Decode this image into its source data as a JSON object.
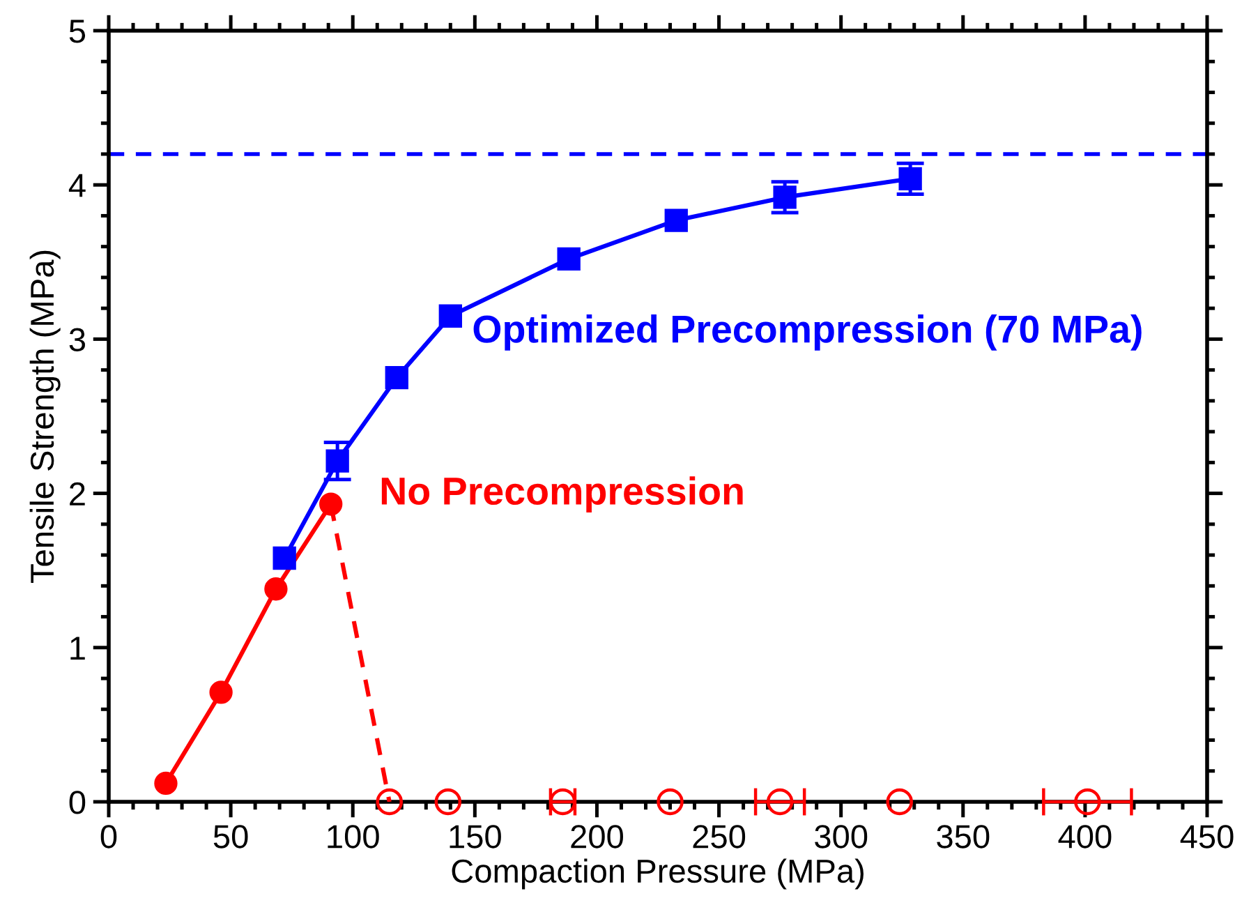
{
  "chart_data": {
    "type": "line",
    "xlabel": "Compaction Pressure (MPa)",
    "ylabel": "Tensile Strength (MPa)",
    "xlim": [
      0,
      450
    ],
    "xticks": [
      0,
      50,
      100,
      150,
      200,
      250,
      300,
      350,
      400,
      450
    ],
    "ylim": [
      0,
      5
    ],
    "yticks": [
      0,
      1,
      2,
      3,
      4,
      5
    ],
    "grid": false,
    "legend": false,
    "series": [
      {
        "name": "No Precompression",
        "color": "#ff0000",
        "marker": "circle",
        "line_style": "solid",
        "x": [
          23.4,
          46,
          68.5,
          91
        ],
        "values": [
          0.12,
          0.71,
          1.38,
          1.93
        ]
      },
      {
        "color": "#ff0000",
        "marker": "none",
        "line_style": "dashed",
        "x": [
          91,
          115
        ],
        "values": [
          1.93,
          0
        ]
      },
      {
        "type": "scatter",
        "color": "#ff0000",
        "marker": "circle",
        "x": [
          115,
          139,
          186,
          230,
          275,
          324,
          401
        ],
        "values": [
          0,
          0,
          0,
          0,
          0,
          0,
          0
        ],
        "xerrors": [
          null,
          null,
          5,
          null,
          10,
          null,
          18
        ]
      },
      {
        "name": "Optimized Precompression (70 MPa)",
        "color": "#0000ff",
        "marker": "square",
        "line_style": "solid",
        "x": [
          72,
          93.7,
          118,
          140,
          188.5,
          232.5,
          277,
          328.4
        ],
        "values": [
          1.58,
          2.21,
          2.75,
          3.15,
          3.52,
          3.77,
          3.92,
          4.04
        ],
        "errors": [
          null,
          0.12,
          null,
          null,
          null,
          null,
          0.1,
          0.1
        ]
      }
    ],
    "ref_lines": [
      {
        "axis": "y",
        "value": 4.2,
        "color": "#0000ff",
        "line_style": "dashed"
      }
    ]
  }
}
